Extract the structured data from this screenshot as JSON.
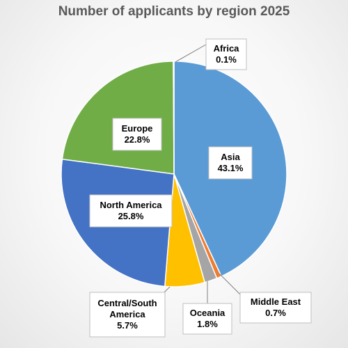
{
  "chart_data": {
    "type": "pie",
    "title": "Number of applicants by region 2025",
    "unit": "%",
    "slices": [
      {
        "name": "Asia",
        "value": 43.1,
        "label": "43.1%",
        "color": "#5b9bd5"
      },
      {
        "name": "Middle East",
        "value": 0.7,
        "label": "0.7%",
        "color": "#ed7d31"
      },
      {
        "name": "Oceania",
        "value": 1.8,
        "label": "1.8%",
        "color": "#a5a5a5"
      },
      {
        "name": "Central/South America",
        "value": 5.7,
        "label": "5.7%",
        "color": "#ffc000"
      },
      {
        "name": "North America",
        "value": 25.8,
        "label": "25.8%",
        "color": "#4472c4"
      },
      {
        "name": "Europe",
        "value": 22.8,
        "label": "22.8%",
        "color": "#70ad47"
      },
      {
        "name": "Africa",
        "value": 0.1,
        "label": "0.1%",
        "color": "#c55a11"
      }
    ],
    "start_angle_deg": 0,
    "direction": "clockwise",
    "legend": "none",
    "data_labels": "outside-with-callouts-and-inside"
  }
}
